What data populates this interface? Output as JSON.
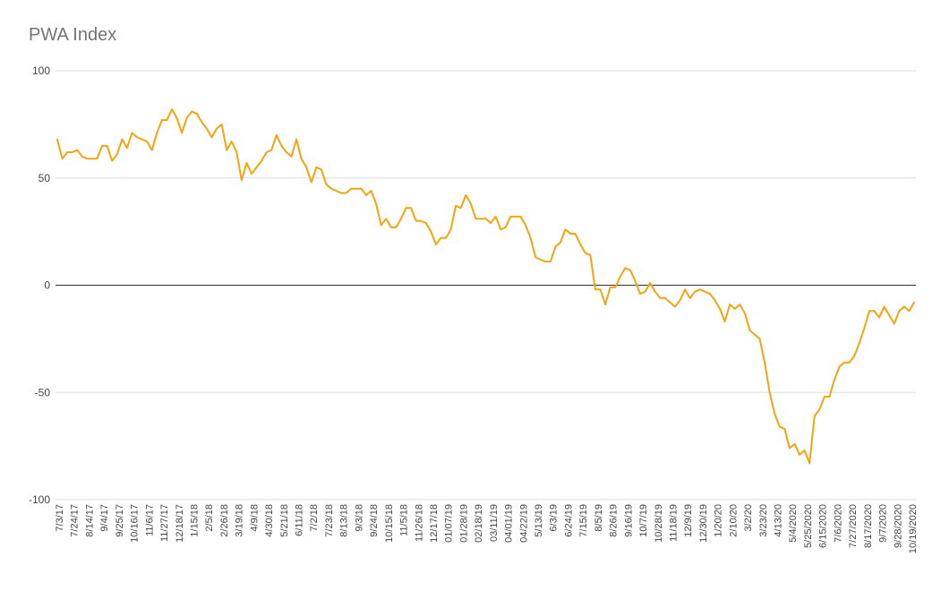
{
  "chart_data": {
    "type": "line",
    "title": "PWA Index",
    "xlabel": "",
    "ylabel": "",
    "ylim": [
      -100,
      100
    ],
    "yticks": [
      100,
      50,
      0,
      -50,
      -100
    ],
    "grid": true,
    "legend": "none",
    "colors": {
      "line": "#F4A410",
      "grid": "#dddddd",
      "zero_line": "#333333"
    },
    "x_tick_labels": [
      "7/3/17",
      "7/24/17",
      "8/14/17",
      "9/4/17",
      "9/25/17",
      "10/16/17",
      "11/6/17",
      "11/27/17",
      "12/18/17",
      "1/15/18",
      "2/5/18",
      "2/26/18",
      "3/19/18",
      "4/9/18",
      "4/30/18",
      "5/21/18",
      "6/11/18",
      "7/2/18",
      "7/23/18",
      "8/13/18",
      "9/3/18",
      "9/24/18",
      "10/15/18",
      "11/5/18",
      "11/26/18",
      "12/17/18",
      "01/07/19",
      "01/28/19",
      "02/18/19",
      "03/11/19",
      "04/01/19",
      "04/22/19",
      "5/13/19",
      "6/3/19",
      "6/24/19",
      "7/15/19",
      "8/5/19",
      "8/26/19",
      "9/16/19",
      "10/7/19",
      "10/28/19",
      "11/18/19",
      "12/9/19",
      "12/30/19",
      "1/20/20",
      "2/10/20",
      "3/2/20",
      "3/23/20",
      "4/13/20",
      "5/4/2020",
      "5/25/2020",
      "6/15/2020",
      "7/6/2020",
      "7/27/2020",
      "8/17/2020",
      "9/7/2020",
      "9/28/2020",
      "10/19/2020"
    ],
    "series": [
      {
        "values": [
          68,
          59,
          62,
          62,
          63,
          60,
          59,
          59,
          59,
          65,
          65,
          58,
          61,
          68,
          64,
          71,
          69,
          68,
          67,
          63,
          71,
          77,
          77,
          82,
          78,
          71,
          78,
          81,
          80,
          76,
          73,
          69,
          73,
          75,
          63,
          67,
          62,
          49,
          57,
          52,
          55,
          58,
          62,
          63,
          70,
          65,
          62,
          60,
          68,
          59,
          55,
          48,
          55,
          54,
          47,
          45,
          44,
          43,
          43,
          45,
          45,
          45,
          42,
          44,
          38,
          28,
          31,
          27,
          27,
          31,
          36,
          36,
          30,
          30,
          29,
          25,
          19,
          22,
          22,
          26,
          37,
          36,
          42,
          38,
          31,
          31,
          31,
          29,
          32,
          26,
          27,
          32,
          32,
          32,
          28,
          22,
          13,
          12,
          11,
          11,
          18,
          20,
          26,
          24,
          24,
          19,
          15,
          14,
          -2,
          -2,
          -9,
          -1,
          -1,
          4,
          8,
          7,
          2,
          -4,
          -3,
          1,
          -3,
          -6,
          -6,
          -8,
          -10,
          -7,
          -2,
          -6,
          -3,
          -2,
          -3,
          -4,
          -7,
          -11,
          -17,
          -9,
          -11,
          -9,
          -13,
          -21,
          -23,
          -25,
          -36,
          -50,
          -60,
          -66,
          -67,
          -76,
          -74,
          -79,
          -77,
          -83,
          -61,
          -58,
          -52,
          -52,
          -44,
          -38,
          -36,
          -36,
          -33,
          -27,
          -20,
          -12,
          -12,
          -15,
          -10,
          -14,
          -18,
          -12,
          -10,
          -12,
          -8
        ]
      }
    ]
  }
}
